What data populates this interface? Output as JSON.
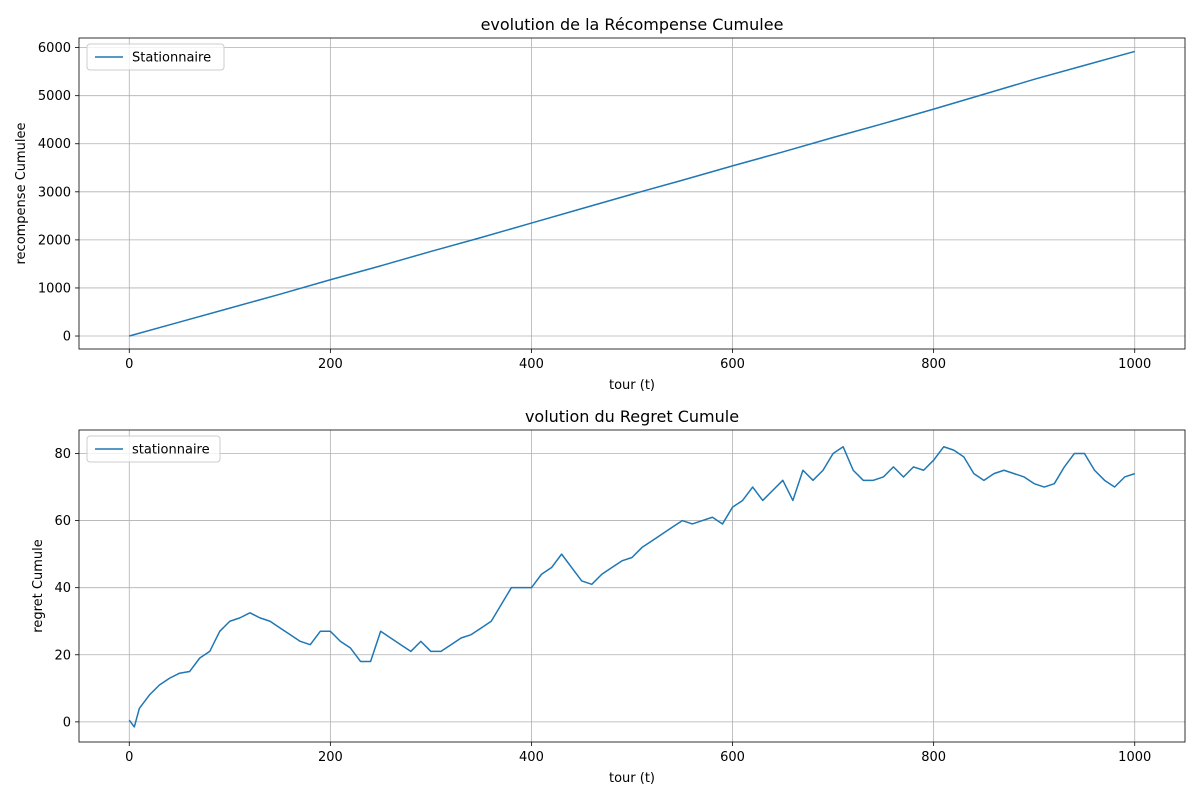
{
  "colors": {
    "series": "#1f77b4",
    "grid": "#b0b0b0",
    "axes": "#000000"
  },
  "chart_data": [
    {
      "type": "line",
      "title": "evolution de la Récompense Cumulee",
      "xlabel": "tour (t)",
      "ylabel": "recompense Cumulee",
      "xlim": [
        -50,
        1050
      ],
      "ylim": [
        -270,
        6200
      ],
      "xticks": [
        0,
        200,
        400,
        600,
        800,
        1000
      ],
      "yticks": [
        0,
        1000,
        2000,
        3000,
        4000,
        5000,
        6000
      ],
      "grid": true,
      "legend": "top-left",
      "series": [
        {
          "name": "Stationnaire",
          "x": [
            0,
            50,
            100,
            150,
            200,
            250,
            300,
            350,
            400,
            450,
            500,
            550,
            600,
            650,
            700,
            750,
            800,
            850,
            900,
            950,
            1000
          ],
          "y": [
            0,
            290,
            580,
            870,
            1170,
            1460,
            1760,
            2050,
            2350,
            2650,
            2950,
            3240,
            3540,
            3830,
            4130,
            4420,
            4720,
            5030,
            5340,
            5630,
            5920
          ]
        }
      ]
    },
    {
      "type": "line",
      "title": "volution du Regret Cumule",
      "xlabel": "tour (t)",
      "ylabel": "regret Cumule",
      "xlim": [
        -50,
        1050
      ],
      "ylim": [
        -6,
        87
      ],
      "xticks": [
        0,
        200,
        400,
        600,
        800,
        1000
      ],
      "yticks": [
        0,
        20,
        40,
        60,
        80
      ],
      "grid": true,
      "legend": "top-left",
      "series": [
        {
          "name": "stationnaire",
          "x": [
            0,
            5,
            10,
            20,
            30,
            40,
            50,
            60,
            70,
            80,
            90,
            100,
            110,
            120,
            130,
            140,
            150,
            160,
            170,
            180,
            190,
            200,
            210,
            220,
            230,
            240,
            250,
            260,
            270,
            280,
            290,
            300,
            310,
            320,
            330,
            340,
            350,
            360,
            370,
            380,
            390,
            400,
            410,
            420,
            430,
            440,
            450,
            460,
            470,
            480,
            490,
            500,
            510,
            520,
            530,
            540,
            550,
            560,
            570,
            580,
            590,
            600,
            610,
            620,
            630,
            640,
            650,
            660,
            670,
            680,
            690,
            700,
            710,
            720,
            730,
            740,
            750,
            760,
            770,
            780,
            790,
            800,
            810,
            820,
            830,
            840,
            850,
            860,
            870,
            880,
            890,
            900,
            910,
            920,
            930,
            940,
            950,
            960,
            970,
            980,
            990,
            1000
          ],
          "y": [
            0.5,
            -1.5,
            4,
            8,
            11,
            13,
            14.5,
            15,
            19,
            21,
            27,
            30,
            31,
            32.5,
            31,
            30,
            28,
            26,
            24,
            23,
            27,
            27,
            24,
            22,
            18,
            18,
            27,
            25,
            23,
            21,
            24,
            21,
            21,
            23,
            25,
            26,
            28,
            30,
            35,
            40,
            40,
            40,
            44,
            46,
            50,
            46,
            42,
            41,
            44,
            46,
            48,
            49,
            52,
            54,
            56,
            58,
            60,
            59,
            60,
            61,
            59,
            64,
            66,
            70,
            66,
            69,
            72,
            66,
            75,
            72,
            75,
            80,
            82,
            75,
            72,
            72,
            73,
            76,
            73,
            76,
            75,
            78,
            82,
            81,
            79,
            74,
            72,
            74,
            75,
            74,
            73,
            71,
            70,
            71,
            76,
            80,
            80,
            75,
            72,
            70,
            73,
            74
          ]
        }
      ]
    }
  ]
}
